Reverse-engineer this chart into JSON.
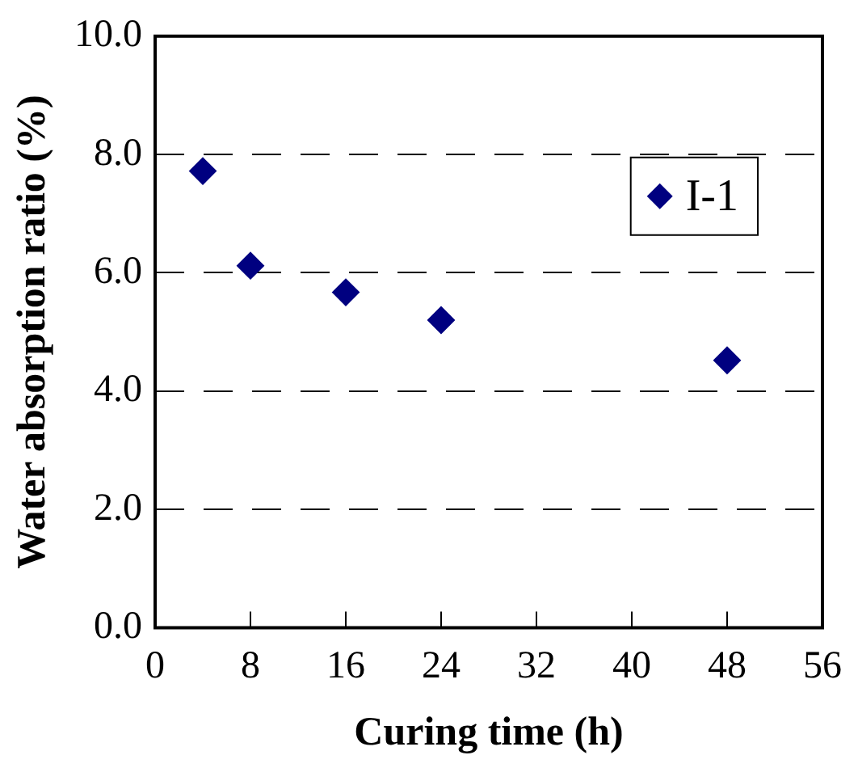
{
  "chart_data": {
    "type": "scatter",
    "xlabel": "Curing time (h)",
    "ylabel": "Water absorption ratio (%)",
    "x": [
      4,
      8,
      16,
      24,
      48
    ],
    "series": [
      {
        "name": "I-1",
        "color": "#000080",
        "values": [
          7.72,
          6.12,
          5.67,
          5.2,
          4.52
        ]
      }
    ],
    "xlim": [
      0,
      56
    ],
    "xticks": [
      0,
      8,
      16,
      24,
      32,
      40,
      48,
      56
    ],
    "ylim": [
      0,
      10
    ],
    "yticks": [
      {
        "value": 0,
        "label": "0.0"
      },
      {
        "value": 2,
        "label": "2.0"
      },
      {
        "value": 4,
        "label": "4.0"
      },
      {
        "value": 6,
        "label": "6.0"
      },
      {
        "value": 8,
        "label": "8.0"
      },
      {
        "value": 10,
        "label": "10.0"
      }
    ],
    "grid": "y",
    "line_style": "dashed",
    "marker": "diamond",
    "legend": "top right"
  }
}
